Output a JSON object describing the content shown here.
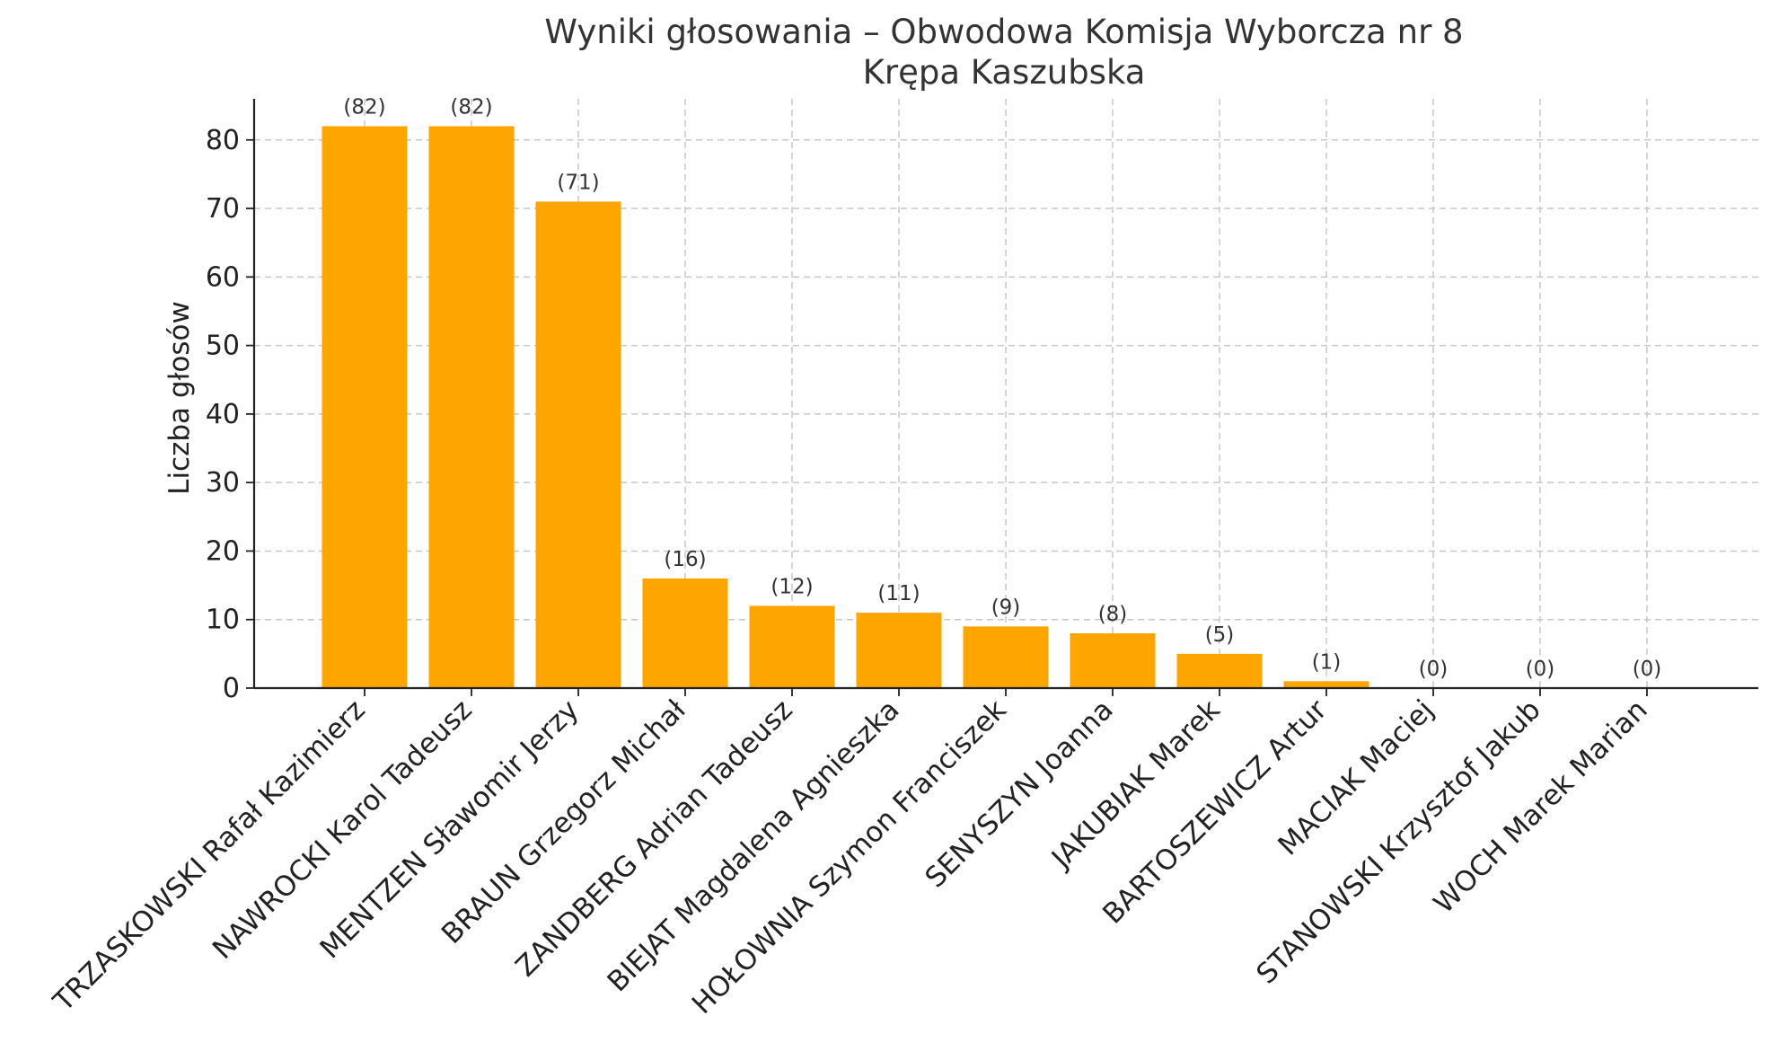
{
  "chart_data": {
    "type": "bar",
    "title": "Wyniki głosowania – Obwodowa Komisja Wyborcza nr 8",
    "subtitle": "Krępa Kaszubska",
    "xlabel": "",
    "ylabel": "Liczba głosów",
    "ylim": [
      0,
      86
    ],
    "yticks": [
      0,
      10,
      20,
      30,
      40,
      50,
      60,
      70,
      80
    ],
    "grid": true,
    "bar_color": "#FFA500",
    "categories": [
      "TRZASKOWSKI Rafał Kazimierz",
      "NAWROCKI Karol Tadeusz",
      "MENTZEN Sławomir Jerzy",
      "BRAUN Grzegorz Michał",
      "ZANDBERG Adrian Tadeusz",
      "BIEJAT Magdalena Agnieszka",
      "HOŁOWNIA Szymon Franciszek",
      "SENYSZYN Joanna",
      "JAKUBIAK Marek",
      "BARTOSZEWICZ Artur",
      "MACIAK Maciej",
      "STANOWSKI Krzysztof Jakub",
      "WOCH Marek Marian"
    ],
    "values": [
      82,
      82,
      71,
      16,
      12,
      11,
      9,
      8,
      5,
      1,
      0,
      0,
      0
    ],
    "data_labels": [
      "(82)",
      "(82)",
      "(71)",
      "(16)",
      "(12)",
      "(11)",
      "(9)",
      "(8)",
      "(5)",
      "(1)",
      "(0)",
      "(0)",
      "(0)"
    ]
  }
}
